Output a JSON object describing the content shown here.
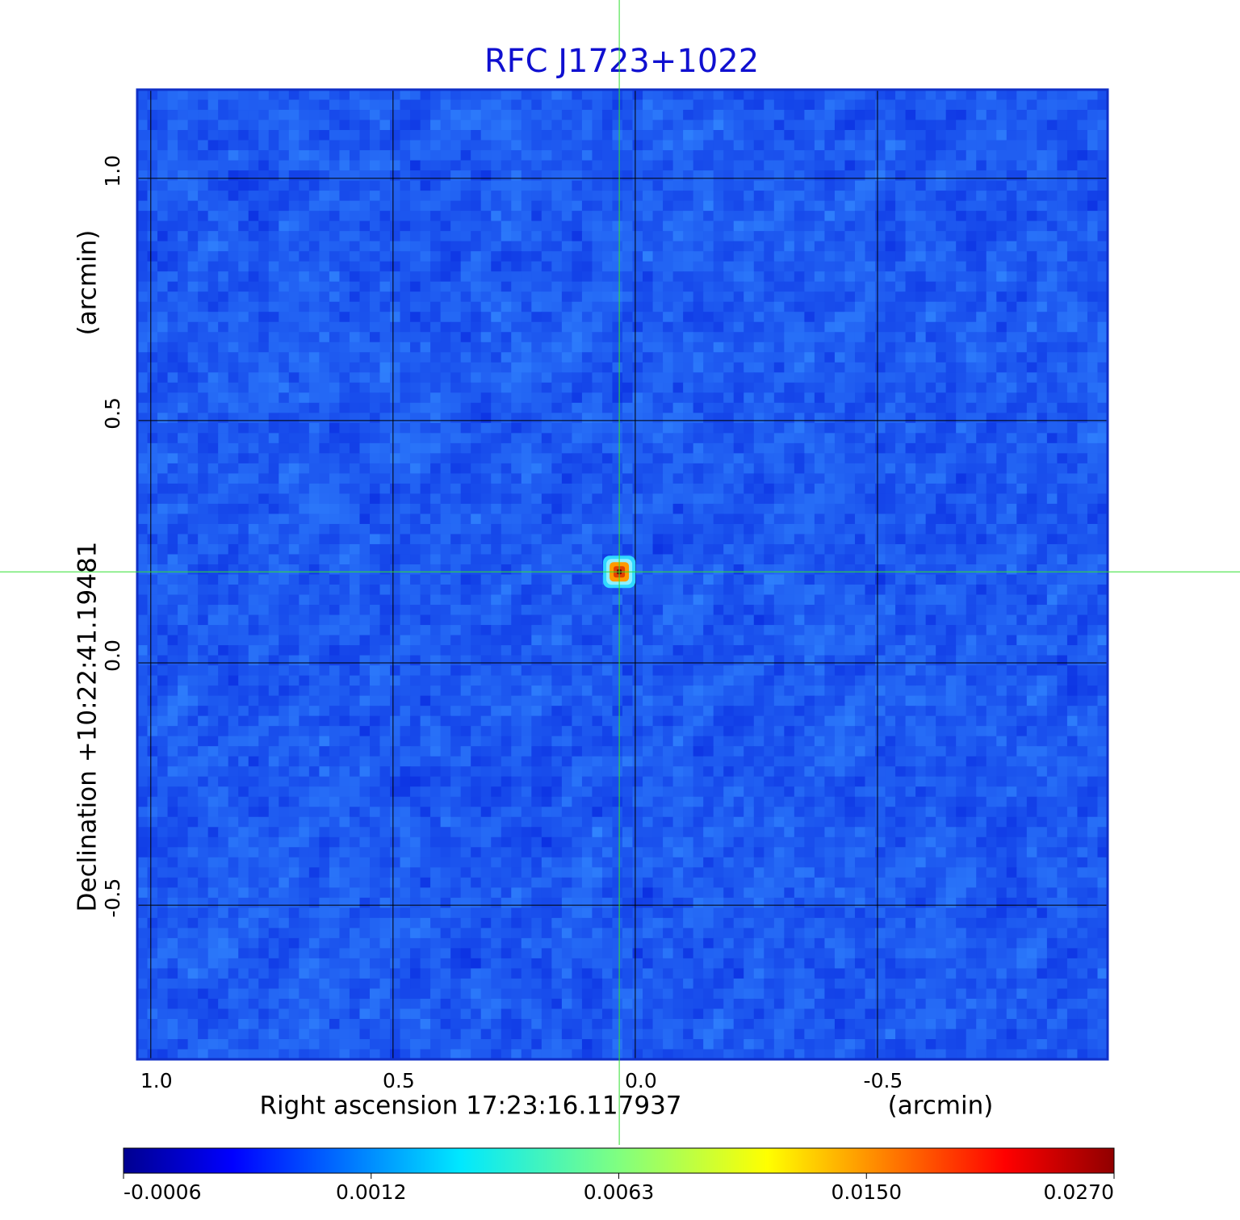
{
  "chart_data": {
    "type": "image",
    "title": "RFC J1723+1022",
    "xlabel": "Right ascension  17:23:16.117937",
    "xunit": "(arcmin)",
    "ylabel": "Declination  +10:22:41.19481",
    "yunit": "(arcmin)",
    "xlim": [
      1.028,
      -0.975
    ],
    "ylim": [
      -0.818,
      1.183
    ],
    "xticks": [
      {
        "value": 1,
        "label": "1.0"
      },
      0.5,
      {
        "value": 0,
        "label": "0.0"
      },
      -0.5
    ],
    "yticks": [
      {
        "value": 1,
        "label": "1.0"
      },
      0.5,
      {
        "value": 0,
        "label": "0.0"
      },
      -0.5
    ],
    "grid": true,
    "source": {
      "x": 0.033,
      "y": 0.188
    },
    "colorbar": {
      "lim": [
        -0.0006,
        0.027
      ],
      "ticks": [
        -0.0006,
        0.0012,
        0.0063,
        {
          "value": 0.015,
          "label": "0.0150"
        },
        {
          "value": 0.027,
          "label": "0.0270"
        }
      ]
    }
  }
}
